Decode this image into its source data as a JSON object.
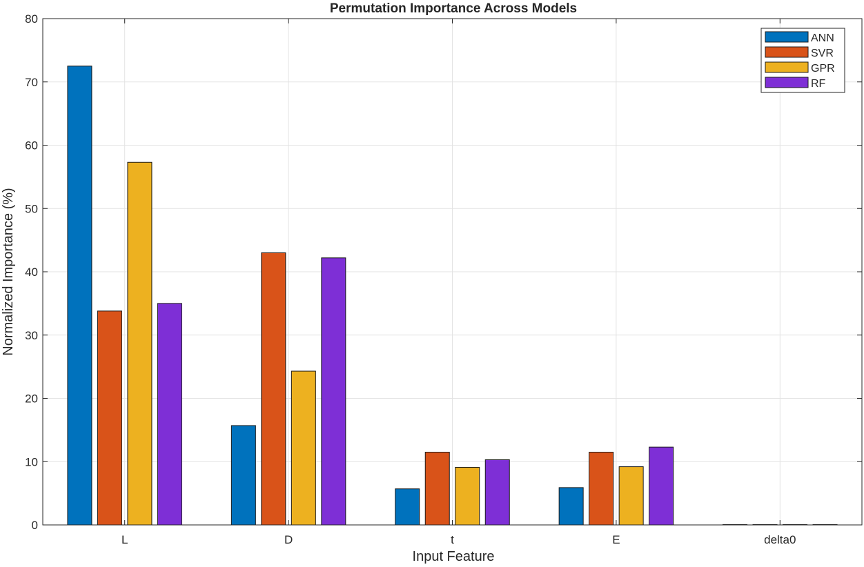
{
  "chart_data": {
    "type": "bar",
    "title": "Permutation Importance Across Models",
    "xlabel": "Input Feature",
    "ylabel": "Normalized Importance (%)",
    "ylim": [
      0,
      80
    ],
    "yticks": [
      "0",
      "10",
      "20",
      "30",
      "40",
      "50",
      "60",
      "70",
      "80"
    ],
    "categories": [
      "L",
      "D",
      "t",
      "E",
      "delta0"
    ],
    "series": [
      {
        "name": "ANN",
        "color": "#0072BD",
        "values": [
          72.5,
          15.7,
          5.7,
          5.9,
          0.05
        ]
      },
      {
        "name": "SVR",
        "color": "#D95319",
        "values": [
          33.8,
          43.0,
          11.5,
          11.5,
          0.05
        ]
      },
      {
        "name": "GPR",
        "color": "#EDB120",
        "values": [
          57.3,
          24.3,
          9.1,
          9.2,
          0.05
        ]
      },
      {
        "name": "RF",
        "color": "#7E2FD6",
        "values": [
          35.0,
          42.2,
          10.3,
          12.3,
          0.05
        ]
      }
    ],
    "grid": true,
    "legend_position": "top-right"
  }
}
